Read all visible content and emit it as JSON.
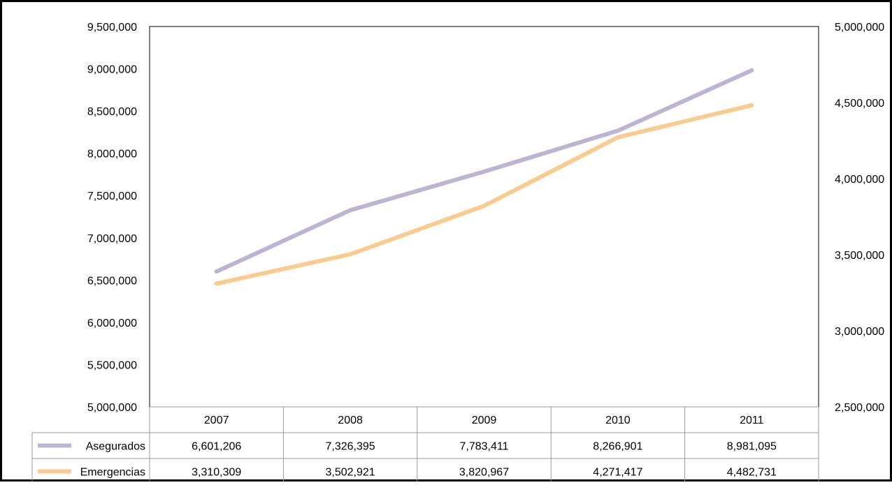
{
  "chart_data": {
    "type": "line",
    "categories": [
      "2007",
      "2008",
      "2009",
      "2010",
      "2011"
    ],
    "left_axis": {
      "ylim": [
        5000000,
        9500000
      ],
      "ticks": [
        "5,000,000",
        "5,500,000",
        "6,000,000",
        "6,500,000",
        "7,000,000",
        "7,500,000",
        "8,000,000",
        "8,500,000",
        "9,000,000",
        "9,500,000"
      ]
    },
    "right_axis": {
      "ylim": [
        2500000,
        5000000
      ],
      "ticks": [
        "2,500,000",
        "3,000,000",
        "3,500,000",
        "4,000,000",
        "4,500,000",
        "5,000,000"
      ]
    },
    "series": [
      {
        "name": "Asegurados",
        "axis": "left",
        "color": "#BFB3D3",
        "values": [
          6601206,
          7326395,
          7783411,
          8266901,
          8981095
        ],
        "labels": [
          "6,601,206",
          "7,326,395",
          "7,783,411",
          "8,266,901",
          "8,981,095"
        ]
      },
      {
        "name": "Emergencias",
        "axis": "right",
        "color": "#FACB8F",
        "values": [
          3310309,
          3502921,
          3820967,
          4271417,
          4482731
        ],
        "labels": [
          "3,310,309",
          "3,502,921",
          "3,820,967",
          "4,271,417",
          "4,482,731"
        ]
      }
    ],
    "grid": false,
    "legend": "data-table"
  }
}
